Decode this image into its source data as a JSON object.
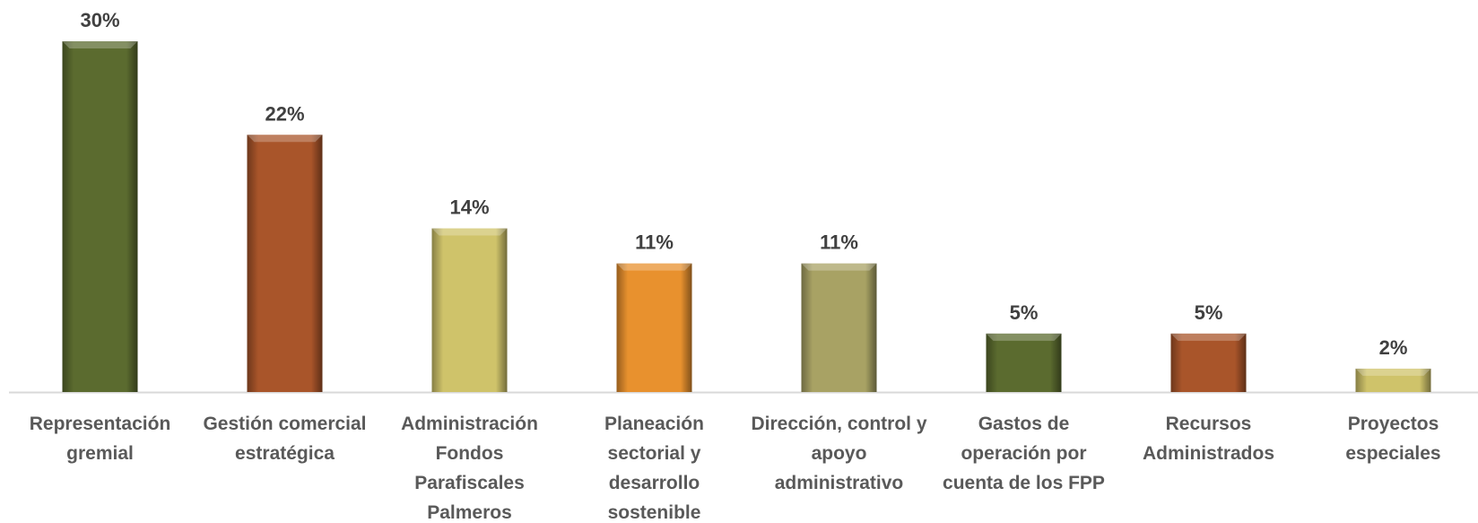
{
  "chart_data": {
    "type": "bar",
    "categories": [
      "Representación gremial",
      "Gestión comercial estratégica",
      "Administración Fondos Parafiscales Palmeros",
      "Planeación sectorial y desarrollo sostenible",
      "Dirección, control y apoyo administrativo",
      "Gastos de operación por cuenta de los FPP",
      "Recursos Administrados",
      "Proyectos especiales"
    ],
    "values": [
      30,
      22,
      14,
      11,
      11,
      5,
      5,
      2
    ],
    "value_labels": [
      "30%",
      "22%",
      "14%",
      "11%",
      "11%",
      "5%",
      "5%",
      "2%"
    ],
    "colors": [
      "#5b6b2f",
      "#a9552a",
      "#cfc36a",
      "#e8912e",
      "#a8a264",
      "#5b6b2f",
      "#a9552a",
      "#cfc36a"
    ]
  }
}
